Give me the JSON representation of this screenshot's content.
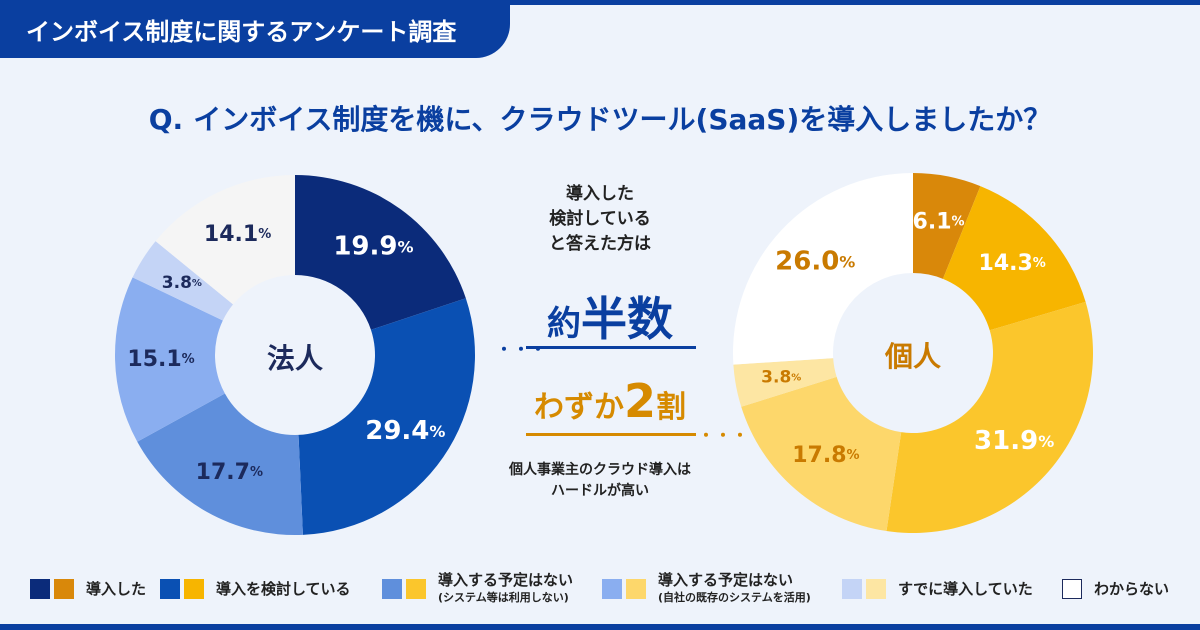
{
  "header": {
    "tag": "インボイス制度に関するアンケート調査",
    "question_q": "Q.",
    "question": "インボイス制度を機に、クラウドツール(SaaS)を導入しましたか？"
  },
  "center": {
    "note1": [
      "導入した",
      "検討している",
      "と答えた方は"
    ],
    "big1_a": "約",
    "big1_b": "半数",
    "big2_a": "わずか",
    "big2_num": "2",
    "big2_b": "割",
    "note2": [
      "個人事業主のクラウド導入は",
      "ハードルが高い"
    ]
  },
  "legend": [
    {
      "label": "導入した",
      "sub": ""
    },
    {
      "label": "導入を検討している",
      "sub": ""
    },
    {
      "label": "導入する予定はない",
      "sub": "(システム等は利用しない)"
    },
    {
      "label": "導入する予定はない",
      "sub": "(自社の既存のシステムを活用)"
    },
    {
      "label": "すでに導入していた",
      "sub": ""
    },
    {
      "label": "わからない",
      "sub": ""
    }
  ],
  "chart_data": [
    {
      "type": "pie",
      "title": "法人",
      "categories": [
        "導入した",
        "導入を検討している",
        "導入する予定はない(システム等は利用しない)",
        "導入する予定はない(自社の既存のシステムを活用)",
        "すでに導入していた",
        "わからない"
      ],
      "values": [
        19.9,
        29.4,
        17.7,
        15.1,
        3.8,
        14.1
      ],
      "labels": [
        "19.9",
        "29.4",
        "17.7",
        "15.1",
        "3.8",
        "14.1"
      ],
      "unit": "%",
      "colors": [
        "#0b2b7a",
        "#0a50b3",
        "#5f8fdc",
        "#8aaef0",
        "#c4d4f6",
        "#f5f5f5"
      ],
      "label_colors": [
        "#ffffff",
        "#ffffff",
        "#1c2a5c",
        "#1c2a5c",
        "#1c2a5c",
        "#1c2a5c"
      ]
    },
    {
      "type": "pie",
      "title": "個人",
      "categories": [
        "導入した",
        "導入を検討している",
        "導入する予定はない(システム等は利用しない)",
        "導入する予定はない(自社の既存のシステムを活用)",
        "すでに導入していた",
        "わからない"
      ],
      "values": [
        6.1,
        14.3,
        31.9,
        17.8,
        3.8,
        26.0
      ],
      "labels": [
        "6.1",
        "14.3",
        "31.9",
        "17.8",
        "3.8",
        "26.0"
      ],
      "unit": "%",
      "colors": [
        "#d9880a",
        "#f7b500",
        "#fbc62c",
        "#fdd76b",
        "#fde6a3",
        "#ffffff"
      ],
      "label_colors": [
        "#ffffff",
        "#ffffff",
        "#ffffff",
        "#c97a00",
        "#c97a00",
        "#c97a00"
      ]
    }
  ],
  "colors": {
    "primary": "#0a3fa0",
    "accent": "#d68a00",
    "background": "#eef3fb"
  }
}
